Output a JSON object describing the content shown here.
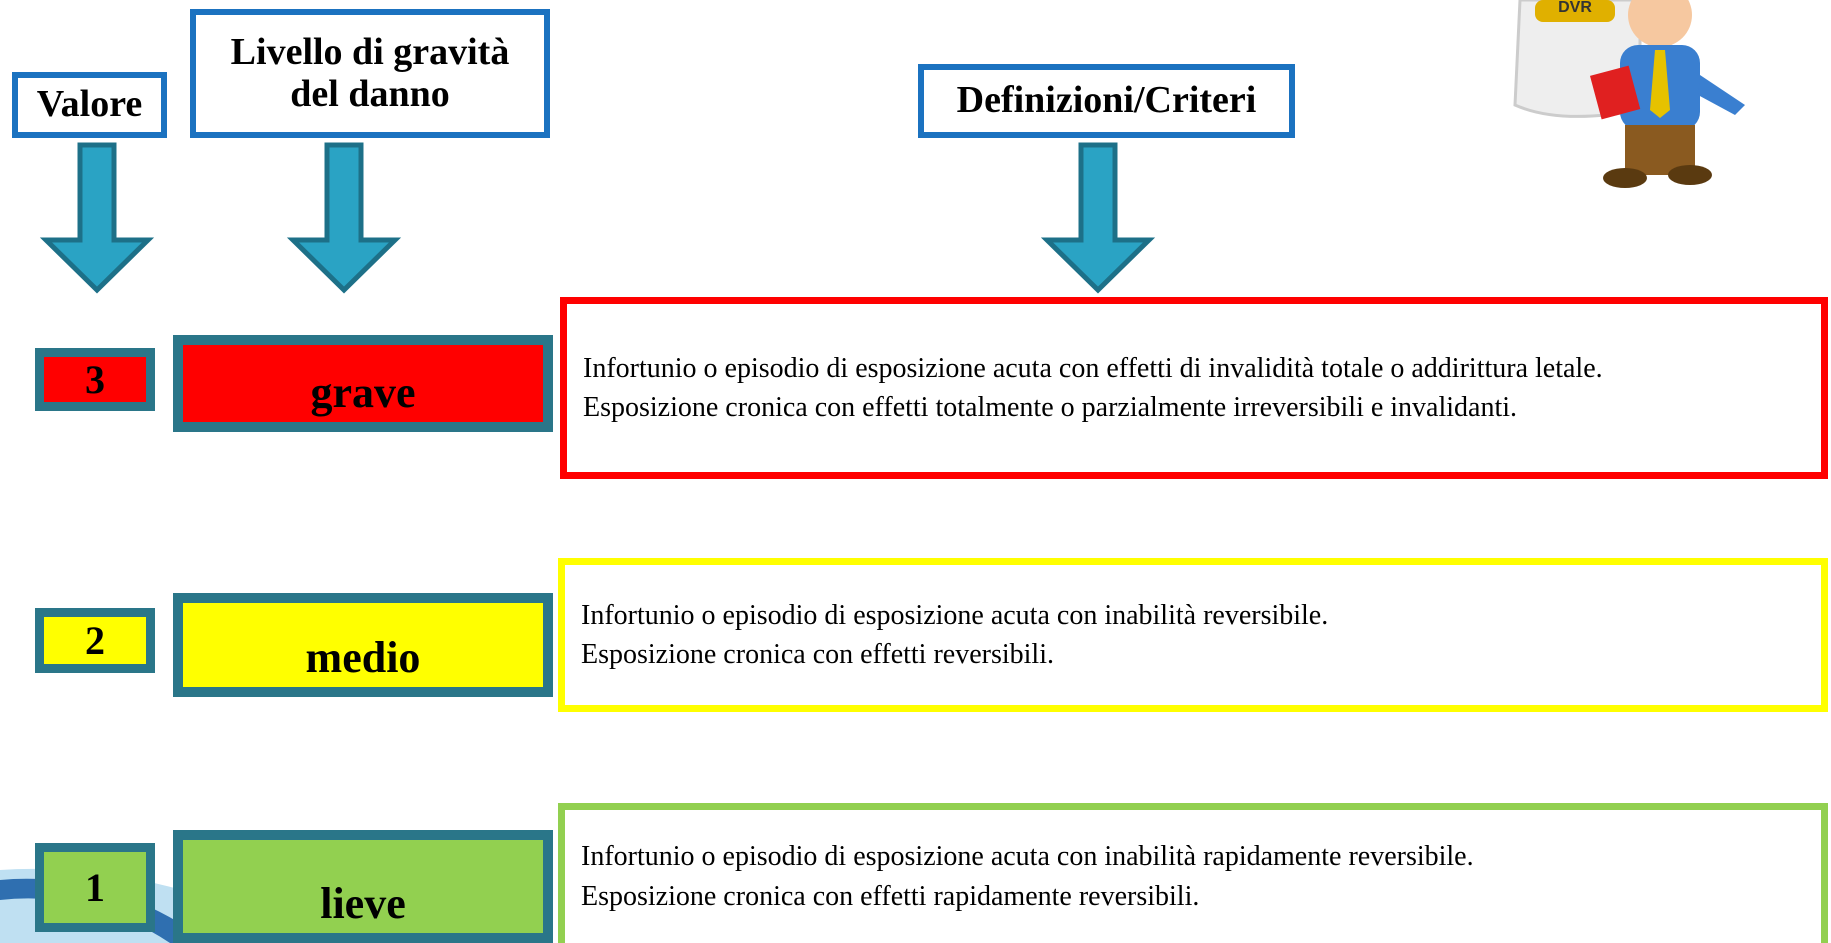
{
  "header": {
    "value": "Valore",
    "level": "Livello di gravità del danno",
    "criteria": "Definizioni/Criteri"
  },
  "illustration": {
    "label": "DVR"
  },
  "rows": [
    {
      "value": "3",
      "level": "grave",
      "criteria": [
        "Infortunio o episodio di esposizione acuta con effetti di invalidità totale o addirittura letale.",
        "Esposizione cronica con effetti totalmente o parzialmente irreversibili e invalidanti."
      ]
    },
    {
      "value": "2",
      "level": "medio",
      "criteria": [
        "Infortunio o episodio di esposizione acuta con inabilità reversibile.",
        "Esposizione cronica con effetti reversibili."
      ]
    },
    {
      "value": "1",
      "level": "lieve",
      "criteria": [
        "Infortunio o episodio di esposizione acuta con inabilità rapidamente reversibile.",
        "Esposizione cronica con effetti rapidamente reversibili."
      ]
    }
  ]
}
